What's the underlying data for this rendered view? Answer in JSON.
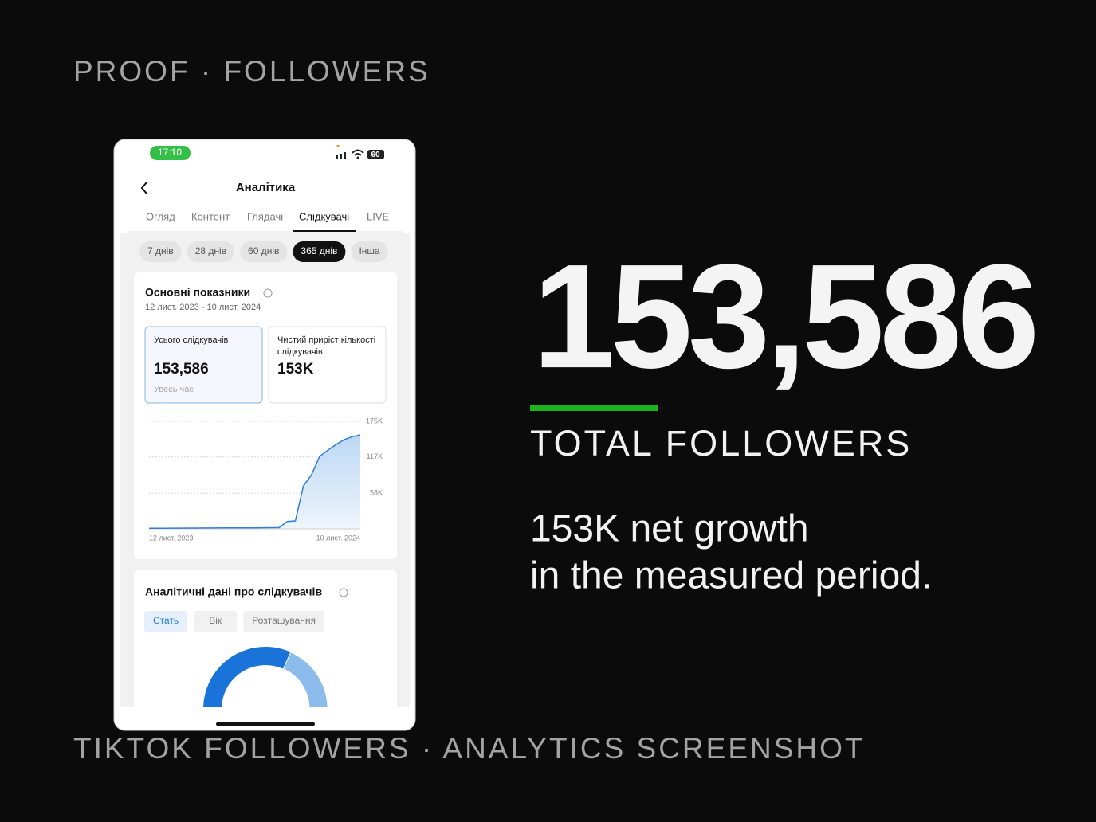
{
  "header": {
    "label": "PROOF · FOLLOWERS"
  },
  "footer": {
    "label": "TIKTOK FOLLOWERS · ANALYTICS SCREENSHOT"
  },
  "headline": {
    "value": "153,586",
    "label": "TOTAL FOLLOWERS",
    "caption_lines": [
      "153K net growth",
      "in the measured period."
    ]
  },
  "phone": {
    "status_time": "17:10",
    "battery": "60",
    "title": "Аналітика",
    "tabs": [
      "Огляд",
      "Контент",
      "Глядачі",
      "Слідкувачі",
      "LIVE"
    ],
    "active_tab": 3,
    "ranges": [
      "7 днів",
      "28 днів",
      "60 днів",
      "365 днів",
      "Інша"
    ],
    "active_range": 3,
    "overview": {
      "title": "Основні показники",
      "dates": "12 лист. 2023 - 10 лист. 2024",
      "cards": [
        {
          "label": "Усього слідкувачів",
          "value": "153,586",
          "note": "Увесь час"
        },
        {
          "label": "Чистий приріст кількості слідкувачів",
          "value": "153K"
        }
      ]
    },
    "chart": {
      "type": "line",
      "color": "#2f7fd8",
      "categories": [
        "12 лист. 2023",
        null,
        null,
        null,
        null,
        null,
        null,
        null,
        null,
        null,
        null,
        null,
        null,
        null,
        null,
        null,
        null,
        null,
        null,
        null,
        null,
        null,
        null,
        null,
        null,
        null,
        "10 лист. 2024"
      ],
      "values": [
        1000,
        1000,
        1100,
        1200,
        1200,
        1300,
        1300,
        1400,
        1400,
        1500,
        1500,
        1600,
        1700,
        1700,
        1800,
        1900,
        2000,
        12000,
        13000,
        70000,
        88000,
        118000,
        128000,
        137000,
        145000,
        150000,
        153000
      ],
      "ylim": [
        0,
        175000
      ],
      "yticks": [
        {
          "value": 58000,
          "label": "58K"
        },
        {
          "value": 117000,
          "label": "117K"
        },
        {
          "value": 175000,
          "label": "175K"
        }
      ]
    },
    "insights": {
      "title": "Аналітичні дані про слідкувачів",
      "tabs": [
        "Стать",
        "Вік",
        "Розташування"
      ],
      "active_tab": 0,
      "donut": {
        "values": [
          60,
          40
        ],
        "colors": [
          "#1a73d9",
          "#8cbcec"
        ]
      }
    }
  }
}
